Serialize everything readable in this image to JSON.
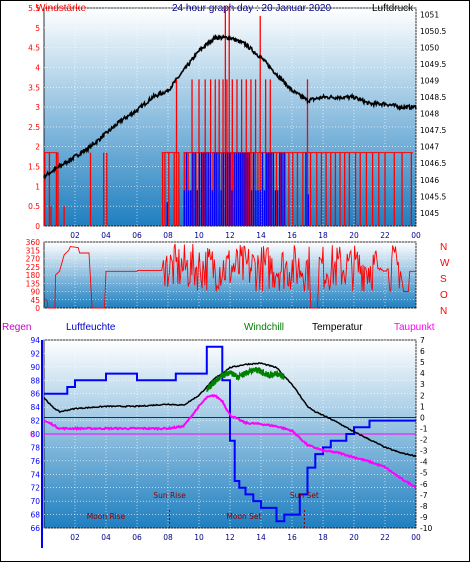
{
  "header": {
    "left_label": "Windstärke",
    "title": "24 hour graph day : 20 Januar 2020",
    "right_label": "Luftdruck"
  },
  "mid_header": {
    "regen": "Regen",
    "luftfeuchte": "Luftfeuchte",
    "windchill": "Windchill",
    "temperatur": "Temperatur",
    "taupunkt": "Taupunkt"
  },
  "colors": {
    "wind": "#ff0000",
    "gust": "#0000ff",
    "pressure": "#000000",
    "humidity": "#0000ff",
    "temperature": "#000000",
    "windchill": "#008000",
    "dewpoint": "#ff00ff",
    "grid": "#ffffff",
    "bg_top": "#ffffff",
    "bg_bottom": "#1f7fc0"
  },
  "x_ticks": [
    "02",
    "04",
    "06",
    "08",
    "10",
    "12",
    "14",
    "16",
    "18",
    "20",
    "22",
    "00"
  ],
  "chart_data": [
    {
      "type": "line",
      "name": "wind-pressure",
      "x_unit": "hour",
      "left_axis": {
        "label": "Windstärke",
        "ticks": [
          "0",
          "0.5",
          "1",
          "1.5",
          "2",
          "2.5",
          "3",
          "3.5",
          "4",
          "4.5",
          "5",
          "5.5"
        ],
        "ylim": [
          0,
          5.5
        ]
      },
      "right_axis": {
        "label": "Luftdruck",
        "ticks": [
          "1045",
          "1045.5",
          "1046",
          "1046.5",
          "1047",
          "1047.5",
          "1048",
          "1048.5",
          "1049",
          "1049.5",
          "1050",
          "1050.5",
          "1051"
        ],
        "ylim": [
          1044.6,
          1051.2
        ]
      },
      "series": [
        {
          "name": "Luftdruck",
          "axis": "right",
          "x": [
            0,
            1,
            2,
            3,
            4,
            5,
            6,
            7,
            8,
            9,
            10,
            11,
            12,
            13,
            14,
            15,
            16,
            17,
            18,
            19,
            20,
            21,
            22,
            23,
            24
          ],
          "y": [
            1046.1,
            1046.4,
            1046.7,
            1047.0,
            1047.4,
            1047.8,
            1048.1,
            1048.5,
            1048.7,
            1049.3,
            1049.9,
            1050.3,
            1050.3,
            1050.1,
            1049.7,
            1049.2,
            1048.7,
            1048.4,
            1048.5,
            1048.5,
            1048.5,
            1048.3,
            1048.3,
            1048.2,
            1048.2
          ]
        }
      ]
    },
    {
      "type": "line",
      "name": "wind-direction",
      "x_unit": "hour",
      "left_axis": {
        "ticks": [
          "0",
          "45",
          "90",
          "135",
          "180",
          "225",
          "270",
          "315",
          "360"
        ],
        "ylim": [
          0,
          360
        ]
      },
      "right_axis": {
        "ticks": [
          "N",
          "W",
          "S",
          "O",
          "N"
        ]
      }
    },
    {
      "type": "line",
      "name": "humidity-temperature",
      "x_unit": "hour",
      "left_axis": {
        "label": "Luftfeuchte",
        "ticks": [
          "66",
          "68",
          "70",
          "72",
          "74",
          "76",
          "78",
          "80",
          "82",
          "84",
          "86",
          "88",
          "90",
          "92",
          "94"
        ],
        "ylim": [
          66,
          94
        ]
      },
      "right_axis": {
        "label": "Temperatur",
        "ticks": [
          "7",
          "6",
          "5",
          "4",
          "3",
          "2",
          "1",
          "0",
          "-1",
          "-2",
          "-3",
          "-4",
          "-5",
          "-6",
          "-7",
          "-8",
          "-9",
          "-10"
        ],
        "ylim": [
          -10,
          7
        ]
      },
      "regen_marker": "0",
      "series": [
        {
          "name": "Luftfeuchte",
          "axis": "left",
          "x": [
            0,
            0.5,
            1.5,
            2,
            3,
            4,
            5,
            5.5,
            6,
            7,
            8,
            8.5,
            9.5,
            10,
            10.5,
            11,
            11.5,
            12,
            12.3,
            12.6,
            13,
            13.5,
            14,
            14.5,
            15,
            15.5,
            16,
            16.5,
            17,
            17.5,
            18,
            18.5,
            19,
            19.5,
            20,
            20.5,
            21,
            21.5,
            22,
            22.5,
            23,
            23.5,
            24
          ],
          "y": [
            86,
            86,
            87,
            88,
            88,
            89,
            89,
            89,
            88,
            88,
            88,
            89,
            89,
            89,
            93,
            93,
            88,
            79,
            73,
            72,
            71,
            70,
            69,
            69,
            67,
            68,
            68,
            71,
            75,
            77,
            78,
            79,
            79,
            80,
            81,
            81,
            82,
            82,
            82,
            82,
            82,
            82,
            82
          ]
        },
        {
          "name": "Temperatur",
          "axis": "right",
          "x": [
            0,
            0.5,
            1,
            2,
            3,
            4,
            5,
            6,
            7,
            8,
            9,
            10,
            11,
            12,
            13,
            14,
            15,
            16,
            16.5,
            17,
            17.5,
            18,
            19,
            20,
            21,
            22,
            23,
            24
          ],
          "y": [
            1.8,
            1.0,
            0.5,
            0.8,
            0.9,
            1.0,
            1.0,
            1.0,
            1.1,
            1.2,
            1.1,
            2.0,
            3.5,
            4.5,
            4.8,
            4.9,
            4.5,
            3.0,
            2.0,
            1.0,
            0.5,
            0.2,
            -0.5,
            -1.3,
            -2.0,
            -2.7,
            -3.2,
            -3.5
          ]
        },
        {
          "name": "Windchill",
          "axis": "right",
          "x": [
            10.5,
            11,
            11.5,
            12,
            12.5,
            13,
            13.5,
            14,
            14.5,
            15,
            15.5
          ],
          "y": [
            2.5,
            3.2,
            3.8,
            4.1,
            3.6,
            4.0,
            4.3,
            4.2,
            3.8,
            4.0,
            3.6
          ]
        },
        {
          "name": "Taupunkt",
          "axis": "right",
          "x": [
            0,
            0.5,
            1,
            2,
            3,
            4,
            5,
            6,
            7,
            8,
            9,
            10,
            10.5,
            11,
            11.5,
            12,
            13,
            14,
            15,
            16,
            17,
            18,
            19,
            20,
            21,
            22,
            23,
            24
          ],
          "y": [
            -0.3,
            -0.6,
            -1.0,
            -1.0,
            -1.0,
            -1.0,
            -1.0,
            -1.0,
            -1.0,
            -1.0,
            -0.8,
            1.0,
            1.8,
            2.0,
            1.5,
            0.2,
            -0.5,
            -0.6,
            -0.8,
            -1.2,
            -2.5,
            -3.0,
            -3.2,
            -3.6,
            -4.0,
            -4.5,
            -5.5,
            -6.3
          ]
        }
      ],
      "annotations": [
        {
          "text": "Sun Rise",
          "x": 8.1
        },
        {
          "text": "Moon Rise",
          "x": 4.0
        },
        {
          "text": "Moon Set",
          "x": 12.9
        },
        {
          "text": "Sun Set",
          "x": 16.8
        }
      ]
    }
  ]
}
